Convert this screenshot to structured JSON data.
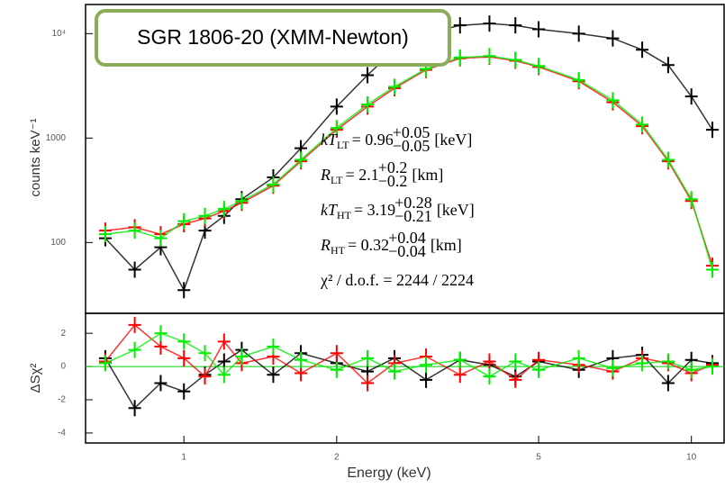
{
  "chart_data": [
    {
      "type": "scatter",
      "ylabel": "counts keV⁻¹",
      "xlog": true,
      "ylog": true,
      "xlim": [
        0.64,
        11.6
      ],
      "ylim": [
        21,
        19000
      ],
      "yticks": [
        100,
        1000,
        {
          "value": 10000,
          "label": "10⁴"
        }
      ],
      "x": [
        0.7,
        0.8,
        0.9,
        1.0,
        1.1,
        1.2,
        1.3,
        1.5,
        1.7,
        2.0,
        2.3,
        2.6,
        3.0,
        3.5,
        4.0,
        4.5,
        5.0,
        6.0,
        7.0,
        8.0,
        9.0,
        10.0,
        11.0
      ],
      "series": [
        {
          "color": "#000000",
          "values": [
            110,
            55,
            90,
            35,
            130,
            180,
            260,
            420,
            800,
            2000,
            4000,
            7000,
            10000,
            12000,
            12500,
            12000,
            11000,
            10000,
            9000,
            7000,
            5000,
            2500,
            1200
          ]
        },
        {
          "color": "#ff0000",
          "values": [
            130,
            140,
            120,
            150,
            170,
            200,
            240,
            350,
            600,
            1200,
            2000,
            3000,
            4500,
            5800,
            6000,
            5500,
            4800,
            3500,
            2200,
            1300,
            600,
            250,
            60
          ]
        },
        {
          "color": "#00ee00",
          "values": [
            120,
            130,
            110,
            160,
            180,
            210,
            250,
            360,
            620,
            1250,
            2100,
            3100,
            4600,
            5900,
            6100,
            5600,
            4900,
            3600,
            2300,
            1350,
            620,
            260,
            55
          ]
        }
      ],
      "annotations": {
        "title": "SGR 1806-20 (XMM-Newton)",
        "params": [
          {
            "sym": "kT",
            "sub": "LT",
            "eq": "= 0.96",
            "plus": "+0.05",
            "minus": "−0.05",
            "unit": "[keV]"
          },
          {
            "sym": "R",
            "sub": "LT",
            "eq": "= 2.1",
            "plus": "+0.2",
            "minus": "−0.2",
            "unit": "[km]"
          },
          {
            "sym": "kT",
            "sub": "HT",
            "eq": "= 3.19",
            "plus": "+0.28",
            "minus": "−0.21",
            "unit": "[keV]"
          },
          {
            "sym": "R",
            "sub": "HT",
            "eq": "= 0.32",
            "plus": "+0.04",
            "minus": "−0.04",
            "unit": "[km]"
          }
        ],
        "chi": "χ² / d.o.f. = 2244 / 2224"
      }
    },
    {
      "type": "scatter",
      "ylabel": "ΔSχ²",
      "xlabel": "Energy (keV)",
      "xlog": true,
      "xlim": [
        0.64,
        11.6
      ],
      "ylim": [
        -4.6,
        3.2
      ],
      "xticks": [
        1,
        2,
        5,
        10
      ],
      "yticks": [
        2,
        0,
        -2,
        -4
      ],
      "x": [
        0.7,
        0.8,
        0.9,
        1.0,
        1.1,
        1.2,
        1.3,
        1.5,
        1.7,
        2.0,
        2.3,
        2.6,
        3.0,
        3.5,
        4.0,
        4.5,
        5.0,
        6.0,
        7.0,
        8.0,
        9.0,
        10.0,
        11.0
      ],
      "series": [
        {
          "color": "#000000",
          "values": [
            0.5,
            -2.5,
            -1.0,
            -1.5,
            -0.5,
            0.3,
            1.0,
            -0.5,
            0.8,
            0.2,
            -0.3,
            0.5,
            -0.8,
            0.4,
            0.1,
            -0.6,
            0.3,
            -0.2,
            0.5,
            0.7,
            -1.0,
            0.4,
            0.2
          ]
        },
        {
          "color": "#ff0000",
          "values": [
            0.3,
            2.5,
            1.2,
            0.5,
            -0.6,
            1.5,
            0.2,
            0.6,
            -0.4,
            0.8,
            -1.0,
            0.2,
            0.6,
            -0.5,
            0.3,
            -0.8,
            0.4,
            0.1,
            -0.3,
            0.5,
            0.2,
            -0.4,
            0.1
          ]
        },
        {
          "color": "#00ee00",
          "values": [
            0.2,
            1.0,
            2.0,
            1.5,
            0.8,
            -0.5,
            0.6,
            1.2,
            0.4,
            -0.2,
            0.5,
            -0.3,
            0.1,
            0.4,
            -0.6,
            0.3,
            -0.2,
            0.5,
            -0.1,
            0.2,
            0.3,
            -0.2,
            0.0
          ]
        }
      ]
    }
  ]
}
